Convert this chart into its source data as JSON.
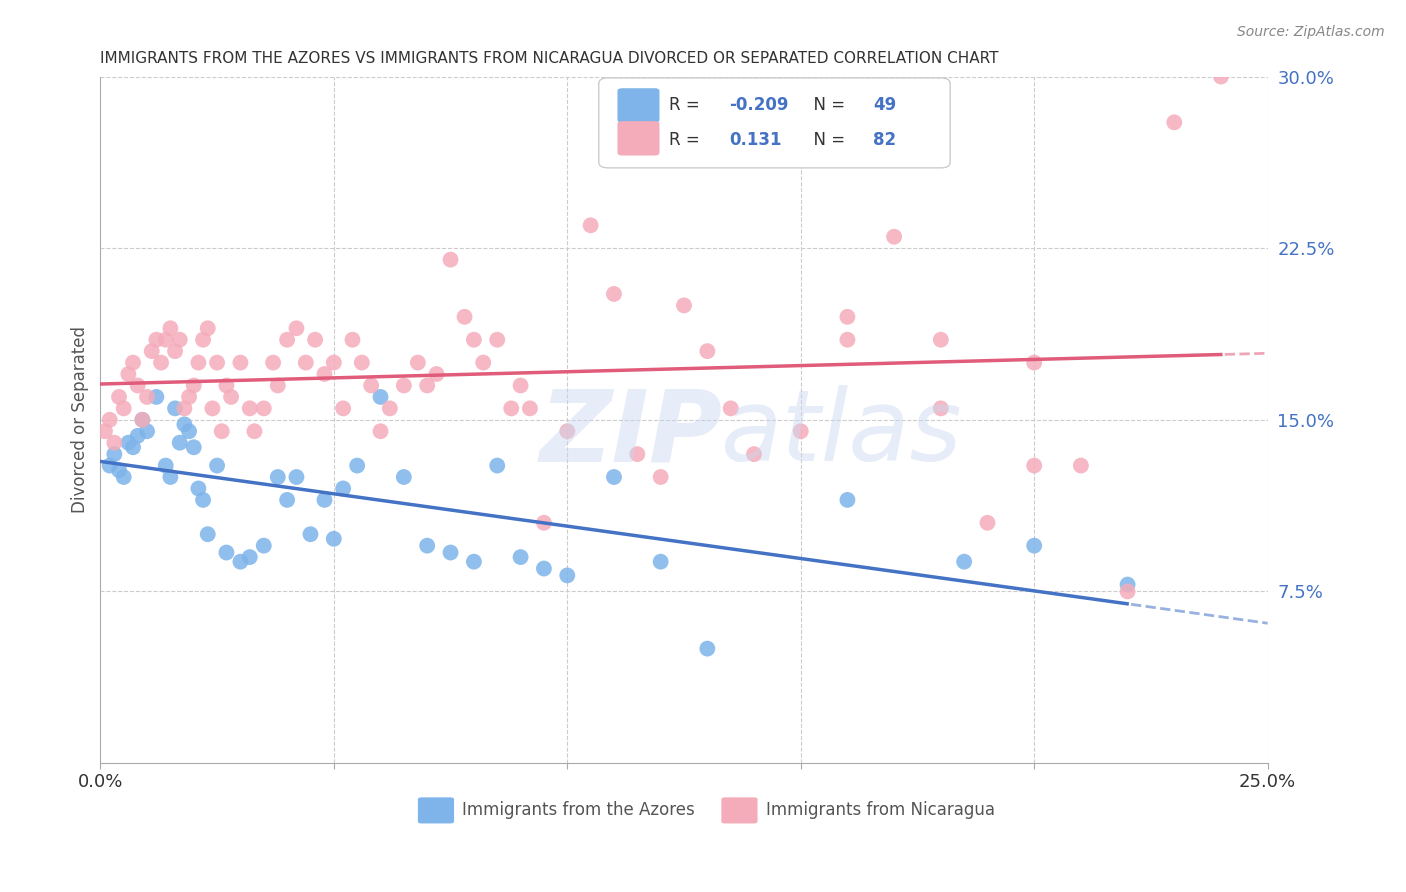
{
  "title": "IMMIGRANTS FROM THE AZORES VS IMMIGRANTS FROM NICARAGUA DIVORCED OR SEPARATED CORRELATION CHART",
  "source": "Source: ZipAtlas.com",
  "ylabel": "Divorced or Separated",
  "legend_blue_label": "Immigrants from the Azores",
  "legend_pink_label": "Immigrants from Nicaragua",
  "legend_blue_R": "-0.209",
  "legend_blue_N": "49",
  "legend_pink_R": "0.131",
  "legend_pink_N": "82",
  "xmin": 0.0,
  "xmax": 0.25,
  "ymin": 0.0,
  "ymax": 0.3,
  "x_ticks": [
    0.0,
    0.05,
    0.1,
    0.15,
    0.2,
    0.25
  ],
  "y_ticks_right": [
    0.075,
    0.15,
    0.225,
    0.3
  ],
  "y_tick_labels_right": [
    "7.5%",
    "15.0%",
    "22.5%",
    "30.0%"
  ],
  "blue_color": "#7EB4EA",
  "pink_color": "#F4ACBA",
  "blue_line_color": "#4472C4",
  "pink_line_color": "#E05C7A",
  "background_color": "#FFFFFF",
  "blue_x": [
    0.002,
    0.003,
    0.004,
    0.005,
    0.006,
    0.007,
    0.008,
    0.009,
    0.01,
    0.012,
    0.014,
    0.015,
    0.016,
    0.017,
    0.018,
    0.019,
    0.02,
    0.021,
    0.022,
    0.023,
    0.025,
    0.027,
    0.03,
    0.032,
    0.035,
    0.038,
    0.04,
    0.042,
    0.045,
    0.048,
    0.05,
    0.052,
    0.055,
    0.06,
    0.065,
    0.07,
    0.075,
    0.08,
    0.085,
    0.09,
    0.095,
    0.1,
    0.11,
    0.12,
    0.13,
    0.16,
    0.185,
    0.2,
    0.22
  ],
  "blue_y": [
    0.13,
    0.135,
    0.128,
    0.125,
    0.14,
    0.138,
    0.143,
    0.15,
    0.145,
    0.16,
    0.13,
    0.125,
    0.155,
    0.14,
    0.148,
    0.145,
    0.138,
    0.12,
    0.115,
    0.1,
    0.13,
    0.092,
    0.088,
    0.09,
    0.095,
    0.125,
    0.115,
    0.125,
    0.1,
    0.115,
    0.098,
    0.12,
    0.13,
    0.16,
    0.125,
    0.095,
    0.092,
    0.088,
    0.13,
    0.09,
    0.085,
    0.082,
    0.125,
    0.088,
    0.05,
    0.115,
    0.088,
    0.095,
    0.078
  ],
  "pink_x": [
    0.001,
    0.002,
    0.003,
    0.004,
    0.005,
    0.006,
    0.007,
    0.008,
    0.009,
    0.01,
    0.011,
    0.012,
    0.013,
    0.014,
    0.015,
    0.016,
    0.017,
    0.018,
    0.019,
    0.02,
    0.021,
    0.022,
    0.023,
    0.024,
    0.025,
    0.026,
    0.027,
    0.028,
    0.03,
    0.032,
    0.033,
    0.035,
    0.037,
    0.038,
    0.04,
    0.042,
    0.044,
    0.046,
    0.048,
    0.05,
    0.052,
    0.054,
    0.056,
    0.058,
    0.06,
    0.062,
    0.065,
    0.068,
    0.07,
    0.072,
    0.075,
    0.078,
    0.08,
    0.082,
    0.085,
    0.088,
    0.09,
    0.092,
    0.095,
    0.1,
    0.105,
    0.11,
    0.115,
    0.12,
    0.125,
    0.13,
    0.135,
    0.14,
    0.15,
    0.16,
    0.17,
    0.18,
    0.19,
    0.2,
    0.21,
    0.22,
    0.23,
    0.24,
    0.16,
    0.18,
    0.2
  ],
  "pink_y": [
    0.145,
    0.15,
    0.14,
    0.16,
    0.155,
    0.17,
    0.175,
    0.165,
    0.15,
    0.16,
    0.18,
    0.185,
    0.175,
    0.185,
    0.19,
    0.18,
    0.185,
    0.155,
    0.16,
    0.165,
    0.175,
    0.185,
    0.19,
    0.155,
    0.175,
    0.145,
    0.165,
    0.16,
    0.175,
    0.155,
    0.145,
    0.155,
    0.175,
    0.165,
    0.185,
    0.19,
    0.175,
    0.185,
    0.17,
    0.175,
    0.155,
    0.185,
    0.175,
    0.165,
    0.145,
    0.155,
    0.165,
    0.175,
    0.165,
    0.17,
    0.22,
    0.195,
    0.185,
    0.175,
    0.185,
    0.155,
    0.165,
    0.155,
    0.105,
    0.145,
    0.235,
    0.205,
    0.135,
    0.125,
    0.2,
    0.18,
    0.155,
    0.135,
    0.145,
    0.195,
    0.23,
    0.185,
    0.105,
    0.175,
    0.13,
    0.075,
    0.28,
    0.3,
    0.185,
    0.155,
    0.13
  ]
}
